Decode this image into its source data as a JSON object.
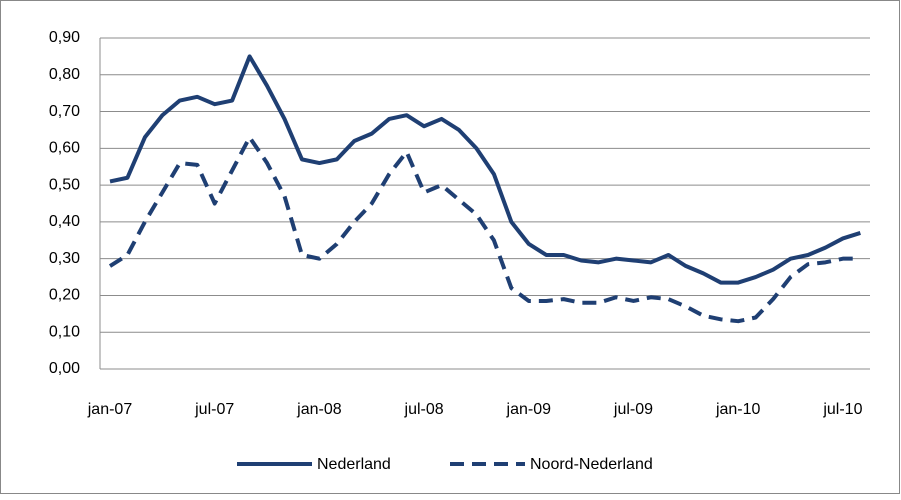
{
  "chart_data": {
    "type": "line",
    "categories": [
      "jan-07",
      null,
      null,
      null,
      null,
      null,
      "jul-07",
      null,
      null,
      null,
      null,
      null,
      "jan-08",
      null,
      null,
      null,
      null,
      null,
      "jul-08",
      null,
      null,
      null,
      null,
      null,
      "jan-09",
      null,
      null,
      null,
      null,
      null,
      "jul-09",
      null,
      null,
      null,
      null,
      null,
      "jan-10",
      null,
      null,
      null,
      null,
      null,
      "jul-10",
      null
    ],
    "series": [
      {
        "name": "Nederland",
        "color": "#1f3f73",
        "dash": "solid",
        "values": [
          0.51,
          0.52,
          0.63,
          0.69,
          0.73,
          0.74,
          0.72,
          0.73,
          0.85,
          0.77,
          0.68,
          0.57,
          0.56,
          0.57,
          0.62,
          0.64,
          0.68,
          0.69,
          0.66,
          0.68,
          0.65,
          0.6,
          0.53,
          0.4,
          0.34,
          0.31,
          0.31,
          0.295,
          0.29,
          0.3,
          0.295,
          0.29,
          0.31,
          0.28,
          0.26,
          0.235,
          0.235,
          0.25,
          0.27,
          0.3,
          0.31,
          0.33,
          0.355,
          0.37
        ]
      },
      {
        "name": "Noord-Nederland",
        "color": "#1f3f73",
        "dash": "dashed",
        "values": [
          0.28,
          0.31,
          0.4,
          0.48,
          0.56,
          0.555,
          0.45,
          0.54,
          0.63,
          0.56,
          0.47,
          0.31,
          0.3,
          0.34,
          0.4,
          0.45,
          0.53,
          0.59,
          0.48,
          0.5,
          0.46,
          0.42,
          0.35,
          0.22,
          0.185,
          0.185,
          0.19,
          0.18,
          0.18,
          0.195,
          0.185,
          0.195,
          0.19,
          0.17,
          0.145,
          0.135,
          0.13,
          0.14,
          0.19,
          0.25,
          0.285,
          0.29,
          0.3,
          0.3
        ]
      }
    ],
    "ylim": [
      0,
      0.9
    ],
    "yticks": [
      {
        "value": 0,
        "label": "0,00"
      },
      {
        "value": 0.1,
        "label": "0,10"
      },
      {
        "value": 0.2,
        "label": "0,20"
      },
      {
        "value": 0.3,
        "label": "0,30"
      },
      {
        "value": 0.4,
        "label": "0,40"
      },
      {
        "value": 0.5,
        "label": "0,50"
      },
      {
        "value": 0.6,
        "label": "0,60"
      },
      {
        "value": 0.7,
        "label": "0,70"
      },
      {
        "value": 0.8,
        "label": "0,80"
      },
      {
        "value": 0.9,
        "label": "0,90"
      }
    ],
    "grid": true,
    "legend": "bottom"
  }
}
